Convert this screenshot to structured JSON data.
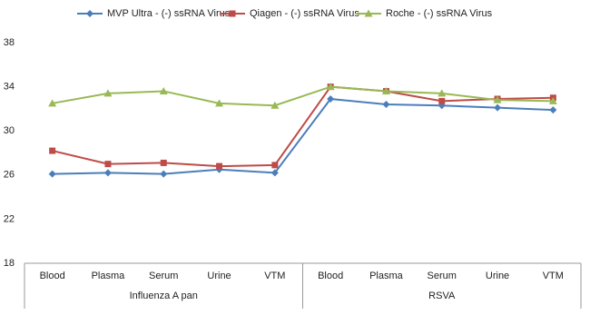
{
  "chart_data": {
    "type": "line",
    "groups": [
      {
        "label": "Influenza A pan",
        "categories": [
          "Blood",
          "Plasma",
          "Serum",
          "Urine",
          "VTM"
        ]
      },
      {
        "label": "RSVA",
        "categories": [
          "Blood",
          "Plasma",
          "Serum",
          "Urine",
          "VTM"
        ]
      }
    ],
    "series": [
      {
        "name": "MVP Ultra - (-) ssRNA Virus",
        "color": "#4a7ebb",
        "marker": "diamond",
        "values": [
          26.1,
          26.2,
          26.1,
          26.5,
          26.2,
          32.9,
          32.4,
          32.3,
          32.1,
          31.9
        ]
      },
      {
        "name": "Qiagen - (-) ssRNA Virus",
        "color": "#be4b48",
        "marker": "square",
        "values": [
          28.2,
          27.0,
          27.1,
          26.8,
          26.9,
          34.0,
          33.6,
          32.7,
          32.9,
          33.0
        ]
      },
      {
        "name": "Roche - (-) ssRNA Virus",
        "color": "#98b954",
        "marker": "triangle",
        "values": [
          32.5,
          33.4,
          33.6,
          32.5,
          32.3,
          34.0,
          33.6,
          33.4,
          32.8,
          32.7
        ]
      }
    ],
    "ylim": [
      18,
      38
    ],
    "yticks": [
      18,
      22,
      26,
      30,
      34,
      38
    ],
    "legend": "top"
  }
}
